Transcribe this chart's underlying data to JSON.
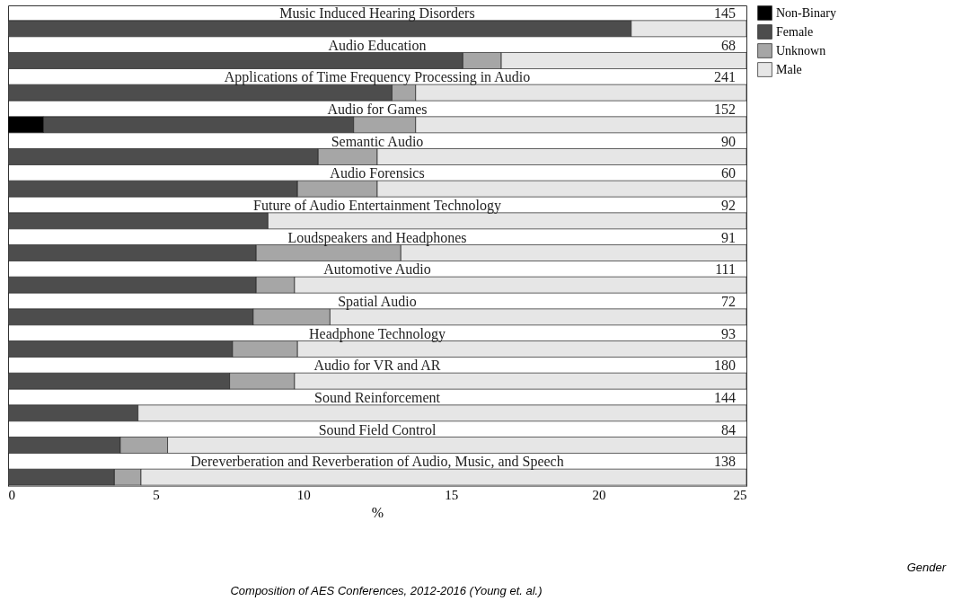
{
  "chart_data": {
    "type": "bar",
    "orientation": "horizontal",
    "stacked": true,
    "xlabel": "%",
    "categories": [
      "Music Induced Hearing Disorders",
      "Audio Education",
      "Applications of Time Frequency Processing in Audio",
      "Audio for Games",
      "Semantic Audio",
      "Audio Forensics",
      "Future of Audio Entertainment Technology",
      "Loudspeakers and Headphones",
      "Automotive Audio",
      "Spatial Audio",
      "Headphone Technology",
      "Audio for VR and AR",
      "Sound Reinforcement",
      "Sound Field Control",
      "Dereverberation and Reverberation of Audio, Music, and Speech"
    ],
    "series": [
      {
        "name": "Non-Binary",
        "color": "#000000",
        "values": [
          null,
          null,
          null,
          1.2,
          null,
          null,
          null,
          null,
          null,
          null,
          null,
          null,
          null,
          null,
          null
        ]
      },
      {
        "name": "Female",
        "color": "#4d4d4d",
        "values": [
          21.1,
          15.4,
          13.0,
          10.5,
          10.5,
          9.8,
          8.8,
          8.4,
          8.4,
          8.3,
          7.6,
          7.5,
          4.4,
          3.8,
          3.6
        ]
      },
      {
        "name": "Unknown",
        "color": "#a6a6a6",
        "values": [
          null,
          1.3,
          0.8,
          2.1,
          2.0,
          2.7,
          null,
          4.9,
          1.3,
          2.6,
          2.2,
          2.2,
          null,
          1.6,
          0.9
        ]
      },
      {
        "name": "Male",
        "color": "#e6e6e6",
        "values": [
          3.9,
          8.3,
          11.2,
          11.2,
          12.5,
          12.5,
          16.2,
          11.7,
          15.3,
          14.1,
          15.2,
          15.3,
          20.6,
          19.6,
          20.5
        ]
      }
    ],
    "xlim": [
      0,
      25
    ],
    "xticks": [
      0,
      5,
      10,
      15,
      20,
      25
    ],
    "grid": false,
    "legend": "top right",
    "annotations": [
      "145",
      "68",
      "241",
      "152",
      "90",
      "60",
      "92",
      "91",
      "111",
      "72",
      "93",
      "180",
      "144",
      "84",
      "138",
      "Gender",
      "Composition of AES Conferences, 2012-2016 (Young et. al.)"
    ]
  }
}
